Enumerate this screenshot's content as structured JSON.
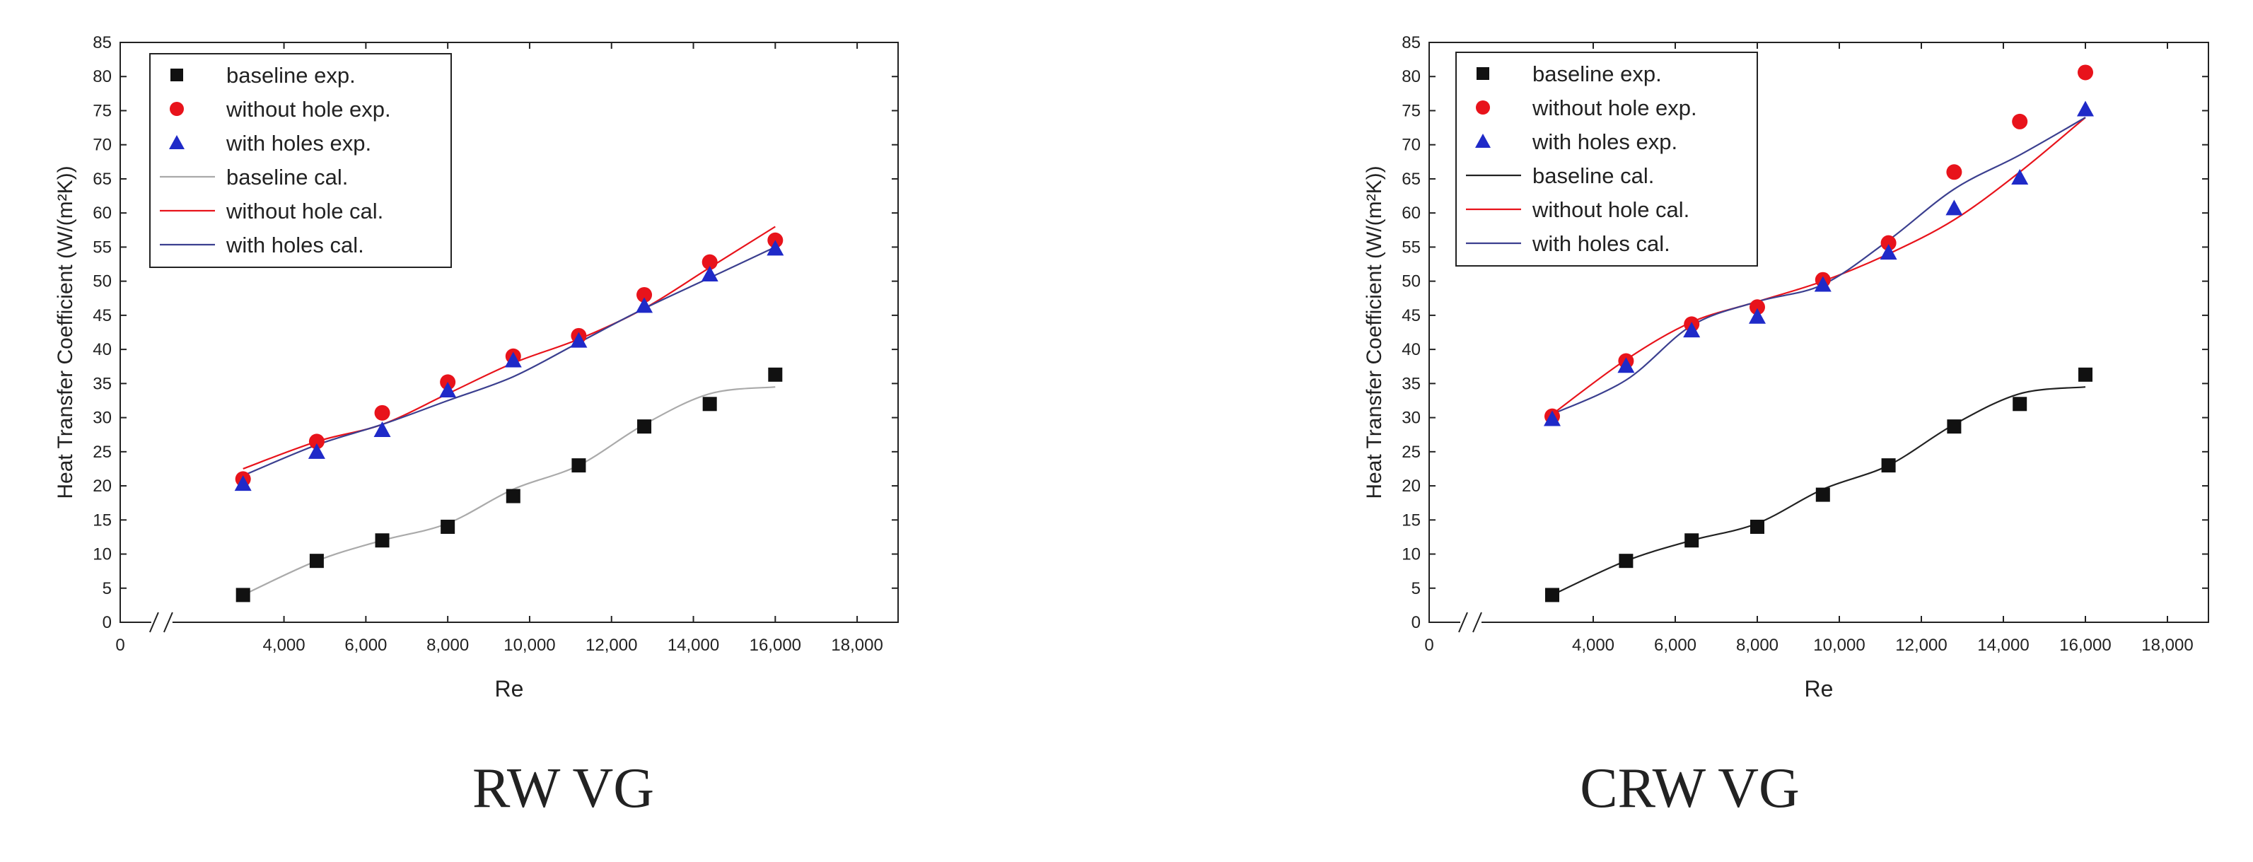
{
  "colors": {
    "baseline": "#111111",
    "without_hole": "#e8131b",
    "with_holes": "#1f2ac8",
    "with_holes_line": "#3b3f8f",
    "axis": "#222222"
  },
  "chart_data": [
    {
      "type": "line",
      "caption": "RW VG",
      "xlabel": "Re",
      "ylabel": "Heat Transfer Coefficient (W/(m²K))",
      "xlim": [
        0,
        19000
      ],
      "ylim": [
        0,
        85
      ],
      "x_ticks": [
        "0",
        "4,000",
        "6,000",
        "8,000",
        "10,000",
        "12,000",
        "14,000",
        "16,000",
        "18,000"
      ],
      "x_tick_values": [
        0,
        4000,
        6000,
        8000,
        10000,
        12000,
        14000,
        16000,
        18000
      ],
      "y_ticks": [
        "0",
        "5",
        "10",
        "15",
        "20",
        "25",
        "30",
        "35",
        "40",
        "45",
        "50",
        "55",
        "60",
        "65",
        "70",
        "75",
        "80",
        "85"
      ],
      "axis_break": "between 0 and 4,000",
      "legend": [
        {
          "label": "baseline exp.",
          "kind": "square",
          "color": "#111111"
        },
        {
          "label": "without hole exp.",
          "kind": "circle",
          "color": "#e8131b"
        },
        {
          "label": "with holes exp.",
          "kind": "triangle",
          "color": "#1f2ac8"
        },
        {
          "label": "baseline cal.",
          "kind": "line",
          "color": "#aaaaaa"
        },
        {
          "label": "without hole cal.",
          "kind": "line",
          "color": "#e8131b"
        },
        {
          "label": "with holes cal.",
          "kind": "line",
          "color": "#3b3f8f"
        }
      ],
      "legend_position": "top-left",
      "x": [
        3000,
        4800,
        6400,
        8000,
        9600,
        11200,
        12800,
        14400,
        16000
      ],
      "series": [
        {
          "name": "baseline exp.",
          "marker": "square",
          "values": [
            4,
            9,
            12,
            14,
            18.5,
            23,
            28.7,
            32,
            36.3
          ]
        },
        {
          "name": "without hole exp.",
          "marker": "circle",
          "values": [
            21,
            26.5,
            30.7,
            35.2,
            39,
            42,
            48,
            52.8,
            56
          ]
        },
        {
          "name": "with holes exp.",
          "marker": "triangle",
          "values": [
            20.3,
            25,
            28.2,
            34,
            38.4,
            41.3,
            46.4,
            51,
            54.8
          ]
        },
        {
          "name": "baseline cal.",
          "line": true,
          "values": [
            4,
            9,
            12,
            14.5,
            19.5,
            23,
            29,
            33.5,
            34.5
          ]
        },
        {
          "name": "without hole cal.",
          "line": true,
          "values": [
            22.5,
            26.5,
            29,
            33.5,
            38,
            41.5,
            46,
            52,
            58
          ]
        },
        {
          "name": "with holes cal.",
          "line": true,
          "values": [
            21.5,
            26,
            29,
            32.5,
            36,
            41,
            46,
            50.5,
            55
          ]
        }
      ]
    },
    {
      "type": "line",
      "caption": "CRW VG",
      "xlabel": "Re",
      "ylabel": "Heat Transfer Coefficient (W/(m²K))",
      "xlim": [
        0,
        19000
      ],
      "ylim": [
        0,
        85
      ],
      "x_ticks": [
        "0",
        "4,000",
        "6,000",
        "8,000",
        "10,000",
        "12,000",
        "14,000",
        "16,000",
        "18,000"
      ],
      "x_tick_values": [
        0,
        4000,
        6000,
        8000,
        10000,
        12000,
        14000,
        16000,
        18000
      ],
      "y_ticks": [
        "0",
        "5",
        "10",
        "15",
        "20",
        "25",
        "30",
        "35",
        "40",
        "45",
        "50",
        "55",
        "60",
        "65",
        "70",
        "75",
        "80",
        "85"
      ],
      "axis_break": "between 0 and 4,000",
      "legend": [
        {
          "label": "baseline exp.",
          "kind": "square",
          "color": "#111111"
        },
        {
          "label": "without hole exp.",
          "kind": "circle",
          "color": "#e8131b"
        },
        {
          "label": "with holes exp.",
          "kind": "triangle",
          "color": "#1f2ac8"
        },
        {
          "label": "baseline cal.",
          "kind": "line",
          "color": "#222222"
        },
        {
          "label": "without hole cal.",
          "kind": "line",
          "color": "#e8131b"
        },
        {
          "label": "with holes cal.",
          "kind": "line",
          "color": "#3b3f8f"
        }
      ],
      "legend_position": "top-left",
      "x": [
        3000,
        4800,
        6400,
        8000,
        9600,
        11200,
        12800,
        14400,
        16000
      ],
      "series": [
        {
          "name": "baseline exp.",
          "marker": "square",
          "values": [
            4,
            9,
            12,
            14,
            18.7,
            23,
            28.7,
            32,
            36.3
          ]
        },
        {
          "name": "without hole exp.",
          "marker": "circle",
          "values": [
            30.2,
            38.3,
            43.7,
            46.2,
            50.2,
            55.6,
            66,
            73.4,
            80.6
          ]
        },
        {
          "name": "with holes exp.",
          "marker": "triangle",
          "values": [
            29.8,
            37.6,
            42.8,
            44.8,
            49.5,
            54.2,
            60.7,
            65.2,
            75.2
          ]
        },
        {
          "name": "baseline cal.",
          "line": true,
          "values": [
            4,
            9,
            12,
            14.5,
            19.5,
            23,
            29,
            33.5,
            34.5
          ]
        },
        {
          "name": "without hole cal.",
          "line": true,
          "values": [
            30.5,
            38.5,
            44,
            47,
            50,
            54,
            59,
            66,
            74
          ]
        },
        {
          "name": "with holes cal.",
          "line": true,
          "values": [
            30.5,
            35.5,
            43.5,
            47,
            49.5,
            56,
            63.5,
            68.5,
            74
          ]
        }
      ]
    }
  ]
}
